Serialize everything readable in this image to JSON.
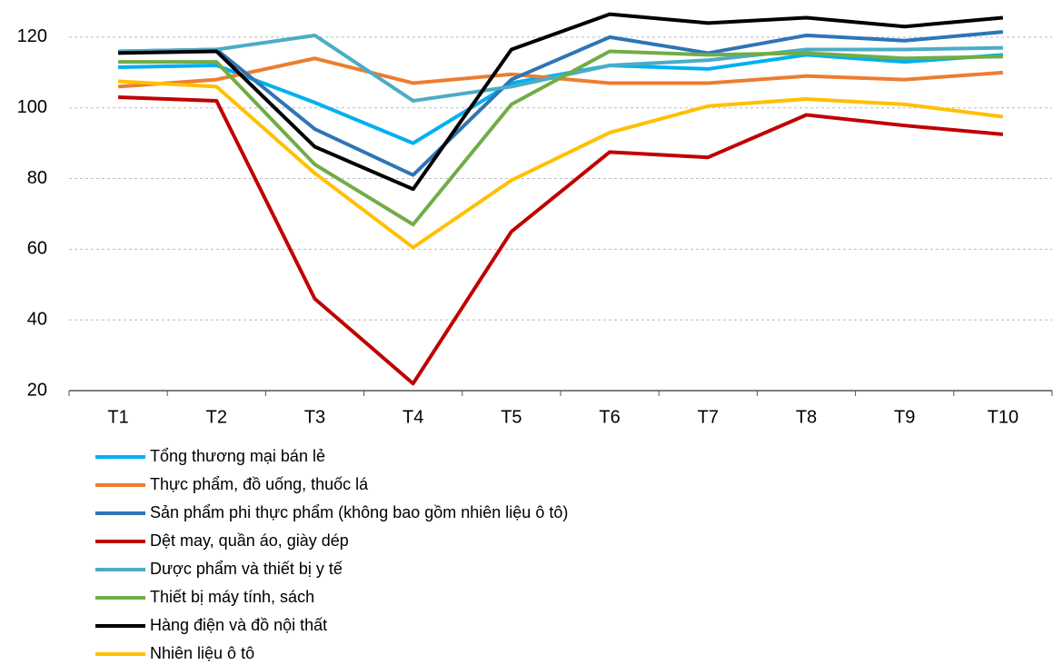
{
  "chart_data": {
    "type": "line",
    "categories": [
      "T1",
      "T2",
      "T3",
      "T4",
      "T5",
      "T6",
      "T7",
      "T8",
      "T9",
      "T10"
    ],
    "series": [
      {
        "name": "Tổng thương mại bán lẻ",
        "color": "#00b0f0",
        "values": [
          111.5,
          112,
          101.5,
          90,
          107,
          112,
          111,
          115,
          113,
          115
        ]
      },
      {
        "name": "Thực phẩm, đồ uống, thuốc lá",
        "color": "#ed7d31",
        "values": [
          106,
          108,
          114,
          107,
          109.5,
          107,
          107,
          109,
          108,
          110
        ]
      },
      {
        "name": "Sản phẩm phi thực phẩm (không bao gồm nhiên liệu ô tô)",
        "color": "#2e75b6",
        "values": [
          116,
          116.5,
          94,
          81,
          108,
          120,
          115.5,
          120.5,
          119,
          121.5
        ]
      },
      {
        "name": "Dệt may, quần áo, giày dép",
        "color": "#c00000",
        "values": [
          103,
          102,
          46,
          22,
          65,
          87.5,
          86,
          98,
          95,
          92.5
        ]
      },
      {
        "name": "Dược phẩm và thiết bị y tế",
        "color": "#4bacc6",
        "values": [
          116,
          116.5,
          120.5,
          102,
          106,
          112,
          113.5,
          116.5,
          116.5,
          117
        ]
      },
      {
        "name": "Thiết bị máy tính, sách",
        "color": "#70ad47",
        "values": [
          113,
          113,
          84,
          67,
          101,
          116,
          115,
          115.5,
          114,
          114.5
        ]
      },
      {
        "name": "Hàng điện và đồ nội thất",
        "color": "#000000",
        "values": [
          115.5,
          116,
          89,
          77,
          116.5,
          126.5,
          124,
          125.5,
          123,
          125.5
        ]
      },
      {
        "name": "Nhiên liệu ô tô",
        "color": "#ffc000",
        "values": [
          107.5,
          106,
          81.5,
          60.5,
          79.5,
          93,
          100.5,
          102.5,
          101,
          97.5
        ]
      }
    ],
    "ylim": [
      20,
      130
    ],
    "yticks": [
      20,
      40,
      60,
      80,
      100,
      120
    ],
    "grid": true,
    "legend": "bottom"
  }
}
